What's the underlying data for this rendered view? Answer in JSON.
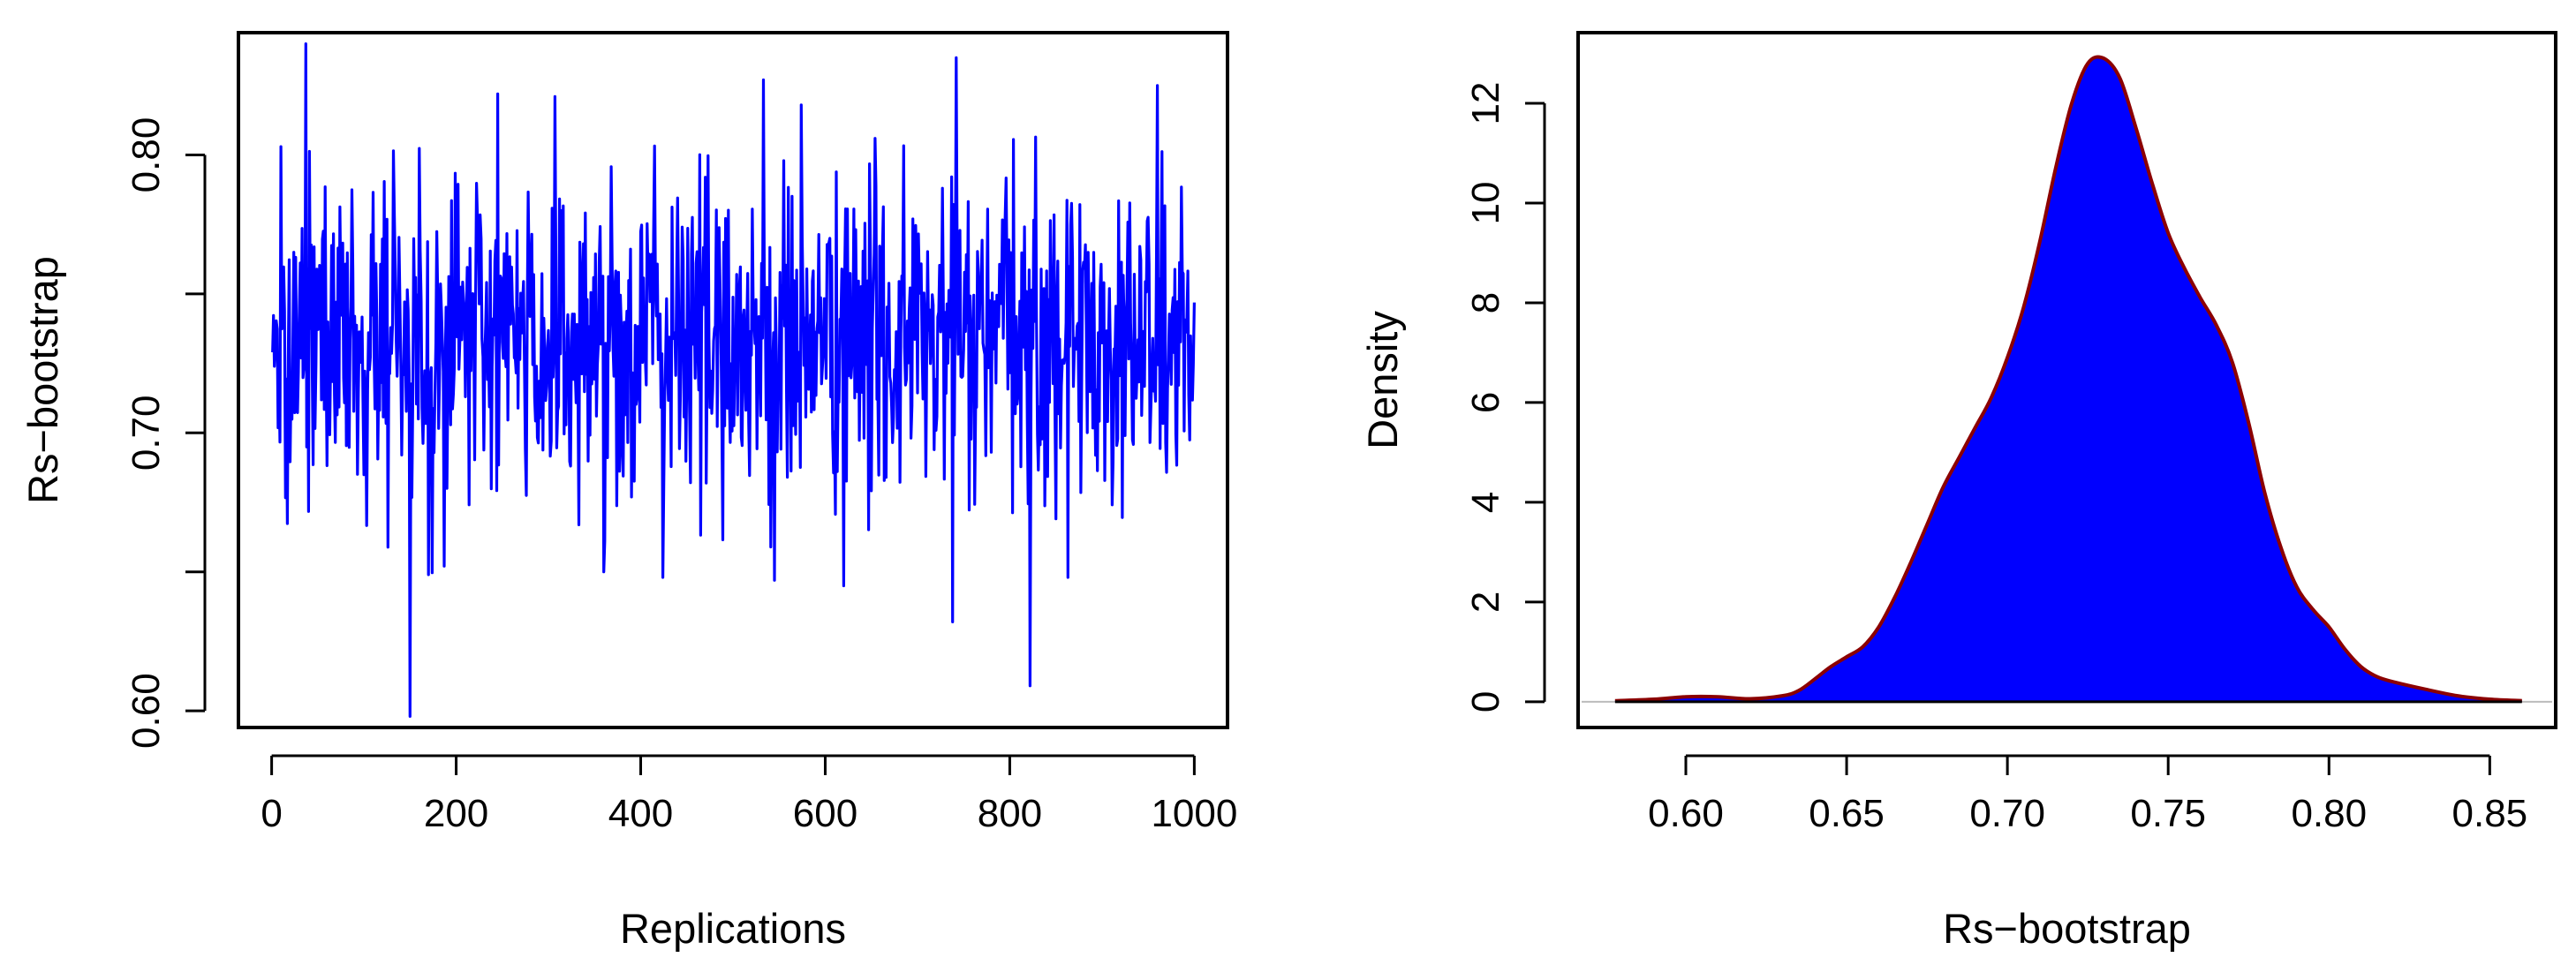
{
  "chart_data": [
    {
      "type": "line",
      "title": "",
      "xlabel": "Replications",
      "ylabel": "Rs−bootstrap",
      "xlim": [
        -36,
        1036
      ],
      "ylim": [
        0.594,
        0.844
      ],
      "xticks": [
        0,
        200,
        400,
        600,
        800,
        1000
      ],
      "xtick_labels": [
        "0",
        "200",
        "400",
        "600",
        "800",
        "1000"
      ],
      "yticks": [
        0.6,
        0.65,
        0.7,
        0.75,
        0.8
      ],
      "ytick_labels": [
        "0.60",
        "",
        "0.70",
        "",
        "0.80"
      ],
      "grid": false,
      "series": [
        {
          "color": "#0000ff",
          "n_points": 1000,
          "mean": 0.733,
          "sd": 0.031,
          "min": 0.598,
          "max": 0.84,
          "x": [
            1,
            10,
            37,
            150,
            170,
            245,
            307,
            360,
            470,
            533,
            545,
            620,
            738,
            742,
            822,
            960
          ],
          "y": [
            0.729,
            0.803,
            0.84,
            0.598,
            0.649,
            0.822,
            0.821,
            0.65,
            0.792,
            0.827,
            0.647,
            0.645,
            0.632,
            0.835,
            0.609,
            0.825
          ]
        }
      ]
    },
    {
      "type": "area",
      "title": "",
      "xlabel": "Rs−bootstrap",
      "ylabel": "Density",
      "xlim": [
        0.5665,
        0.8705
      ],
      "ylim": [
        -0.516,
        13.416
      ],
      "xticks": [
        0.6,
        0.65,
        0.7,
        0.75,
        0.8,
        0.85
      ],
      "xtick_labels": [
        "0.60",
        "0.65",
        "0.70",
        "0.75",
        "0.80",
        "0.85"
      ],
      "yticks": [
        0,
        2,
        4,
        6,
        8,
        10,
        12
      ],
      "ytick_labels": [
        "0",
        "2",
        "4",
        "6",
        "8",
        "10",
        "12"
      ],
      "grid": false,
      "baseline": 0,
      "series": [
        {
          "fill_color": "#0000ff",
          "line_color": "#8b0000",
          "x": [
            0.578,
            0.59,
            0.6,
            0.61,
            0.62,
            0.63,
            0.635,
            0.64,
            0.645,
            0.65,
            0.655,
            0.66,
            0.665,
            0.67,
            0.675,
            0.68,
            0.685,
            0.69,
            0.695,
            0.7,
            0.705,
            0.71,
            0.715,
            0.72,
            0.725,
            0.73,
            0.735,
            0.74,
            0.745,
            0.75,
            0.755,
            0.76,
            0.765,
            0.77,
            0.775,
            0.78,
            0.785,
            0.79,
            0.795,
            0.8,
            0.805,
            0.81,
            0.815,
            0.82,
            0.83,
            0.84,
            0.85,
            0.86
          ],
          "y": [
            0.02,
            0.05,
            0.1,
            0.1,
            0.06,
            0.12,
            0.22,
            0.45,
            0.7,
            0.9,
            1.1,
            1.5,
            2.1,
            2.8,
            3.55,
            4.3,
            4.9,
            5.5,
            6.1,
            6.9,
            7.9,
            9.2,
            10.7,
            12.0,
            12.8,
            12.9,
            12.5,
            11.5,
            10.4,
            9.4,
            8.7,
            8.1,
            7.55,
            6.8,
            5.6,
            4.2,
            3.1,
            2.3,
            1.85,
            1.5,
            1.05,
            0.7,
            0.5,
            0.4,
            0.25,
            0.12,
            0.05,
            0.02
          ]
        }
      ]
    }
  ]
}
